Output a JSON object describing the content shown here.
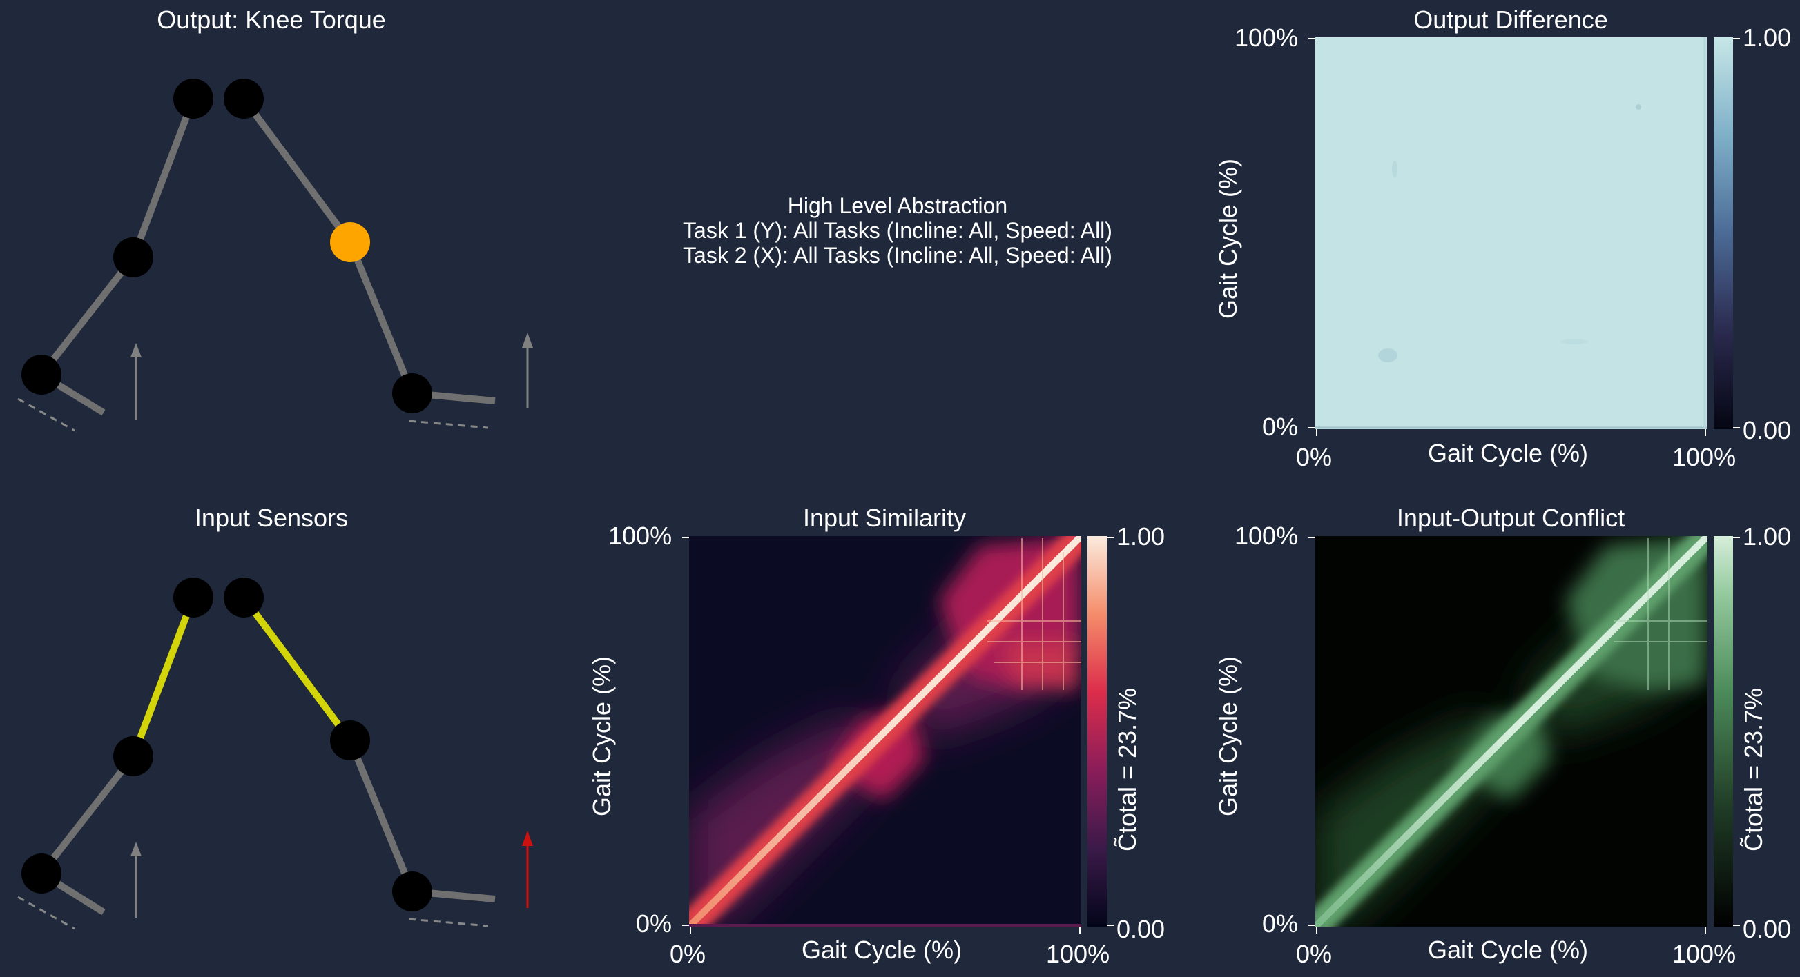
{
  "panels": {
    "output_sensor_title": "Output: Knee Torque",
    "input_sensor_title": "Input Sensors",
    "center_title": "High Level Abstraction",
    "center_line1": "Task 1 (Y): All Tasks (Incline: All, Speed: All)",
    "center_line2": "Task 2 (X): All Tasks (Incline: All, Speed: All)"
  },
  "colors": {
    "background": "#1f293b",
    "link_gray": "#707070",
    "link_yellow": "#d4d40a",
    "joint": "#000000",
    "knee_torque_joint": "#ffa500",
    "grf_arrow_gray": "#808080",
    "grf_arrow_red": "#cc1111"
  },
  "chart_data": [
    {
      "type": "heatmap",
      "title": "Output Difference",
      "xlabel": "Gait Cycle (%)",
      "ylabel": "Gait Cycle (%)",
      "xticks": [
        "0%",
        "100%"
      ],
      "yticks": [
        "0%",
        "100%"
      ],
      "colorbar_ticks": [
        "0.00",
        "1.00"
      ],
      "colormap": "ice",
      "colorbar_label": "",
      "description_values": "near-uniform value ~0.9 across entire matrix"
    },
    {
      "type": "heatmap",
      "title": "Input Similarity",
      "xlabel": "Gait Cycle (%)",
      "ylabel": "Gait Cycle (%)",
      "xticks": [
        "0%",
        "100%"
      ],
      "yticks": [
        "0%",
        "100%"
      ],
      "colorbar_ticks": [
        "0.00",
        "1.00"
      ],
      "colormap": "rocket",
      "colorbar_label": "C̃total = 23.7%"
    },
    {
      "type": "heatmap",
      "title": "Input-Output Conflict",
      "xlabel": "Gait Cycle (%)",
      "ylabel": "Gait Cycle (%)",
      "xticks": [
        "0%",
        "100%"
      ],
      "yticks": [
        "0%",
        "100%"
      ],
      "colorbar_ticks": [
        "0.00",
        "1.00"
      ],
      "colormap": "greens",
      "colorbar_label": "C̃total = 23.7%"
    }
  ]
}
